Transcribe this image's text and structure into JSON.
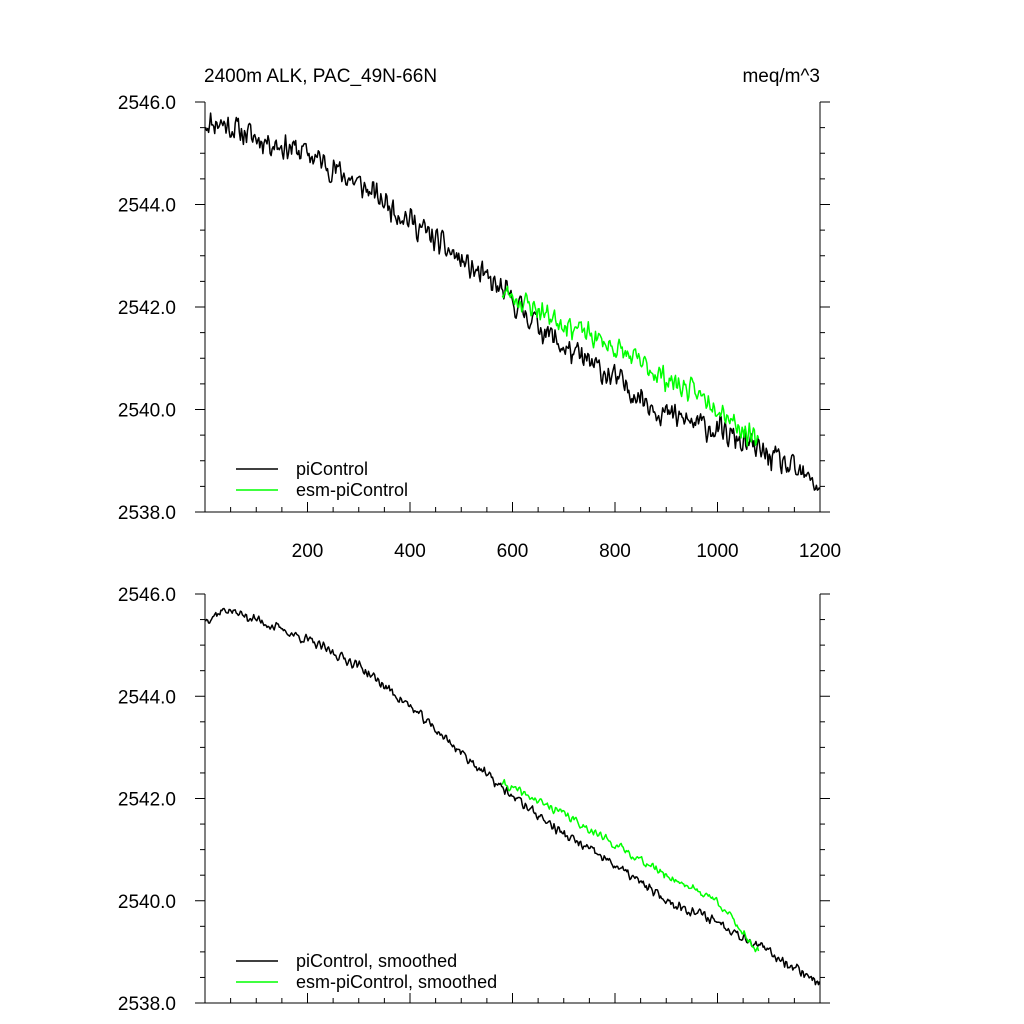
{
  "colors": {
    "piControl": "#000000",
    "esm_piControl": "#00ff00",
    "axis": "#000000"
  },
  "chart_data": [
    {
      "type": "line",
      "title": "2400m ALK, PAC_49N-66N",
      "units": "meq/m^3",
      "xlim": [
        0,
        1200
      ],
      "ylim": [
        2538.0,
        2546.0
      ],
      "xticks": [
        200,
        400,
        600,
        800,
        1000,
        1200
      ],
      "xtick_labels": [
        "200",
        "400",
        "600",
        "800",
        "1000",
        "1200"
      ],
      "yticks": [
        2538.0,
        2540.0,
        2542.0,
        2544.0,
        2546.0
      ],
      "ytick_labels": [
        "2538.0",
        "2540.0",
        "2542.0",
        "2544.0",
        "2546.0"
      ],
      "legend_position": "bottom-left",
      "series": [
        {
          "name": "piControl",
          "color_key": "piControl",
          "noise": 0.32,
          "seed": 11,
          "x_start": 1,
          "x_end": 1200,
          "knots": [
            [
              1,
              2545.6
            ],
            [
              30,
              2545.6
            ],
            [
              100,
              2545.3
            ],
            [
              200,
              2545.0
            ],
            [
              300,
              2544.4
            ],
            [
              400,
              2543.7
            ],
            [
              500,
              2542.9
            ],
            [
              580,
              2542.3
            ],
            [
              700,
              2541.2
            ],
            [
              800,
              2540.6
            ],
            [
              900,
              2539.9
            ],
            [
              1000,
              2539.6
            ],
            [
              1100,
              2539.1
            ],
            [
              1200,
              2538.5
            ]
          ]
        },
        {
          "name": "esm-piControl",
          "color_key": "esm_piControl",
          "noise": 0.28,
          "seed": 23,
          "x_start": 580,
          "x_end": 1080,
          "knots": [
            [
              580,
              2542.3
            ],
            [
              700,
              2541.7
            ],
            [
              800,
              2541.2
            ],
            [
              900,
              2540.6
            ],
            [
              1000,
              2540.1
            ],
            [
              1080,
              2539.3
            ]
          ]
        }
      ]
    },
    {
      "type": "line",
      "title": "",
      "units": "",
      "xlim": [
        0,
        1200
      ],
      "ylim": [
        2538.0,
        2546.0
      ],
      "xticks": [
        200,
        400,
        600,
        800,
        1000,
        1200
      ],
      "xtick_labels": [
        "",
        "",
        "",
        "",
        "",
        ""
      ],
      "yticks": [
        2538.0,
        2540.0,
        2542.0,
        2544.0,
        2546.0
      ],
      "ytick_labels": [
        "2538.0",
        "2540.0",
        "2542.0",
        "2544.0",
        "2546.0"
      ],
      "legend_position": "bottom-left",
      "series": [
        {
          "name": "piControl, smoothed",
          "color_key": "piControl",
          "noise": 0.12,
          "seed": 37,
          "x_start": 1,
          "x_end": 1200,
          "knots": [
            [
              1,
              2545.5
            ],
            [
              40,
              2545.7
            ],
            [
              100,
              2545.5
            ],
            [
              200,
              2545.1
            ],
            [
              300,
              2544.6
            ],
            [
              400,
              2543.8
            ],
            [
              500,
              2542.9
            ],
            [
              580,
              2542.2
            ],
            [
              700,
              2541.3
            ],
            [
              800,
              2540.7
            ],
            [
              900,
              2540.0
            ],
            [
              1000,
              2539.6
            ],
            [
              1100,
              2539.0
            ],
            [
              1200,
              2538.4
            ]
          ]
        },
        {
          "name": "esm-piControl, smoothed",
          "color_key": "esm_piControl",
          "noise": 0.1,
          "seed": 41,
          "x_start": 580,
          "x_end": 1080,
          "knots": [
            [
              580,
              2542.3
            ],
            [
              700,
              2541.7
            ],
            [
              800,
              2541.1
            ],
            [
              900,
              2540.5
            ],
            [
              1000,
              2540.0
            ],
            [
              1080,
              2539.0
            ]
          ]
        }
      ]
    }
  ]
}
